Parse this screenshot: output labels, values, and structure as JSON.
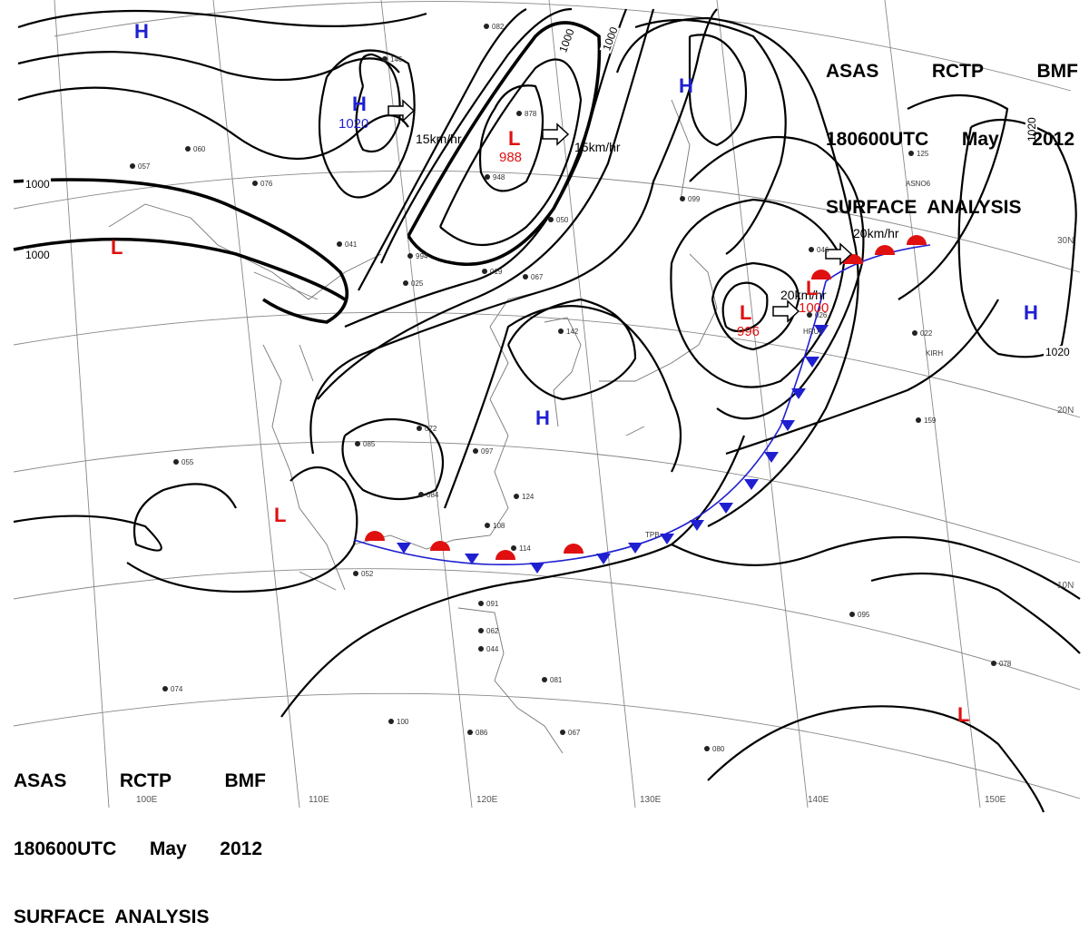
{
  "header": {
    "line1": [
      "ASAS",
      "RCTP",
      "BMF"
    ],
    "line2": [
      "180600UTC",
      "May",
      "2012"
    ],
    "line3": "SURFACE  ANALYSIS"
  },
  "graticule": {
    "longitudes": [
      "100E",
      "110E",
      "120E",
      "130E",
      "140E",
      "150E"
    ],
    "latitudes": [
      "30N",
      "20N",
      "10N"
    ]
  },
  "isobar_labels": [
    "1000",
    "1000",
    "1000",
    "1000",
    "1020",
    "1020"
  ],
  "pressure_centers": [
    {
      "type": "H",
      "label": "H"
    },
    {
      "type": "H",
      "label": "H",
      "value": "1020"
    },
    {
      "type": "L",
      "label": "L",
      "value": "988"
    },
    {
      "type": "H",
      "label": "H"
    },
    {
      "type": "L",
      "label": "L"
    },
    {
      "type": "L",
      "label": "L",
      "value": "996"
    },
    {
      "type": "L",
      "label": "L",
      "value": "1000"
    },
    {
      "type": "H",
      "label": "H"
    },
    {
      "type": "H",
      "label": "H"
    },
    {
      "type": "L",
      "label": "L"
    },
    {
      "type": "L",
      "label": "L"
    }
  ],
  "motion_vectors": [
    "15km/hr",
    "15km/hr",
    "20km/hr",
    "20km/hr"
  ],
  "station_samples": [
    "082",
    "146",
    "878",
    "948",
    "060",
    "057",
    "076",
    "041",
    "994",
    "019",
    "067",
    "050",
    "025",
    "142",
    "072",
    "085",
    "097",
    "084",
    "124",
    "108",
    "114",
    "052",
    "055",
    "091",
    "062",
    "044",
    "081",
    "067",
    "086",
    "100",
    "074",
    "125",
    "159",
    "078",
    "080",
    "095",
    "046",
    "026",
    "099",
    "022"
  ],
  "station_ids": [
    "HRUY",
    "KIRH",
    "ASNO6",
    "TPB"
  ],
  "colors": {
    "high": "#1f1fd1",
    "low": "#e01010",
    "cold_front": "#1f1fd1",
    "warm_front": "#e01010"
  }
}
